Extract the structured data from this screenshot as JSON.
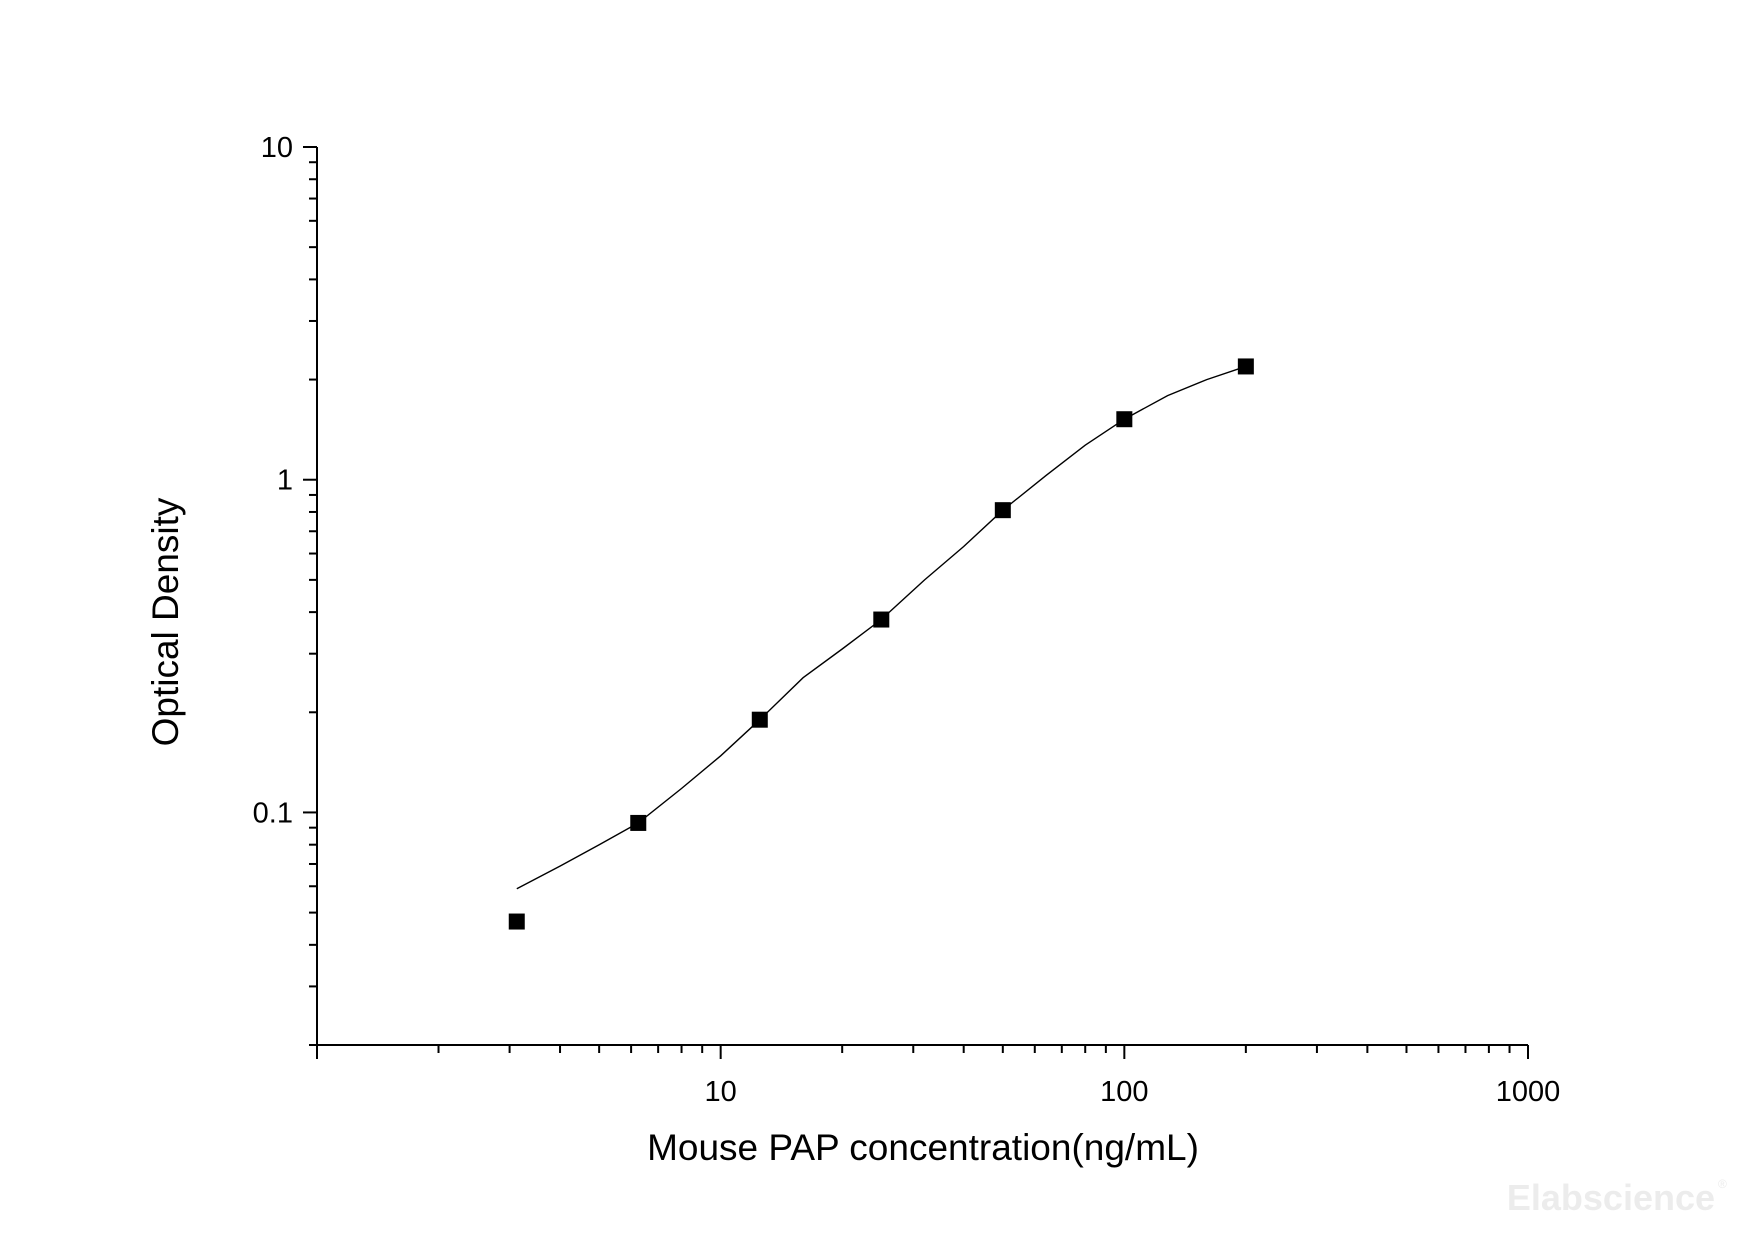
{
  "chart_data": {
    "type": "scatter",
    "xlabel": "Mouse PAP concentration(ng/mL)",
    "ylabel": "Optical Density",
    "x_scale": "log",
    "y_scale": "log",
    "xlim": [
      1,
      1000
    ],
    "ylim": [
      0.02,
      10
    ],
    "x_tick_labels": [
      "10",
      "100",
      "1000"
    ],
    "x_tick_values": [
      10,
      100,
      1000
    ],
    "y_tick_labels": [
      "0.1",
      "1",
      "10"
    ],
    "y_tick_values": [
      0.1,
      1,
      10
    ],
    "grid": false,
    "series": [
      {
        "marker": "square",
        "color": "#000000",
        "x": [
          3.125,
          6.25,
          12.5,
          25,
          50,
          100,
          200
        ],
        "y": [
          0.047,
          0.093,
          0.19,
          0.38,
          0.81,
          1.52,
          2.19
        ]
      }
    ],
    "fit_curve": {
      "type": "four-parameter-logistic",
      "color": "#000000",
      "x": [
        3.125,
        4,
        5,
        6.25,
        8,
        10,
        12.5,
        16,
        20,
        25,
        32,
        40,
        50,
        64,
        80,
        100,
        128,
        160,
        200
      ],
      "y": [
        0.059,
        0.069,
        0.08,
        0.093,
        0.118,
        0.148,
        0.19,
        0.254,
        0.31,
        0.38,
        0.5,
        0.63,
        0.81,
        1.03,
        1.27,
        1.52,
        1.79,
        2.0,
        2.19
      ]
    }
  },
  "watermark": {
    "text": "Elabscience",
    "mark": "®"
  }
}
